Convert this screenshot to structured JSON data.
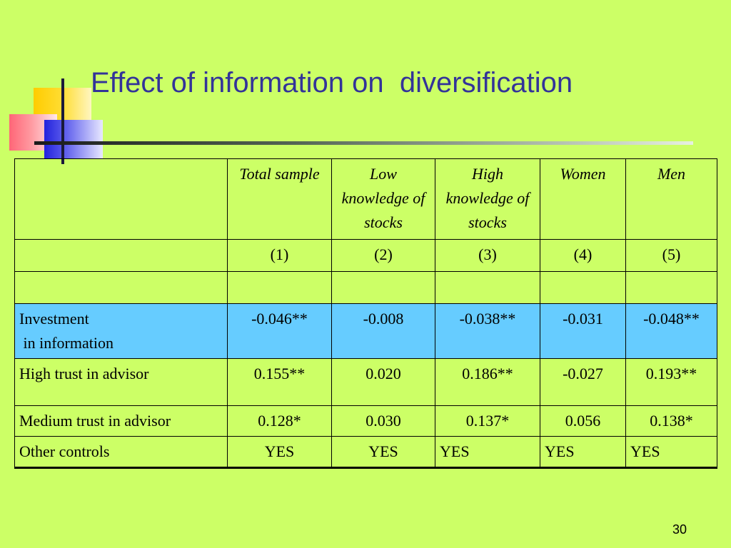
{
  "slide": {
    "title": "Effect of information on  diversification",
    "page_number": "30",
    "background_color": "#ccff66",
    "title_color": "#333399",
    "highlight_color": "#66ccff"
  },
  "table": {
    "columns": [
      "Total sample",
      "Low knowledge of stocks",
      "High knowledge of stocks",
      "Women",
      "Men"
    ],
    "column_numbers": [
      "(1)",
      "(2)",
      "(3)",
      "(4)",
      "(5)"
    ],
    "rows": [
      {
        "label": "Investment\n in information",
        "values": [
          "-0.046**",
          "-0.008",
          "-0.038**",
          "-0.031",
          "-0.048**"
        ],
        "highlight": true
      },
      {
        "label": "High trust in advisor",
        "values": [
          "0.155**",
          "0.020",
          "0.186**",
          "-0.027",
          "0.193**"
        ]
      },
      {
        "label": "Medium trust in advisor",
        "values": [
          "0.128*",
          "0.030",
          "0.137*",
          "0.056",
          "0.138*"
        ]
      },
      {
        "label": "Other controls",
        "values": [
          "YES",
          "YES",
          "YES",
          "YES",
          "YES"
        ]
      }
    ]
  }
}
